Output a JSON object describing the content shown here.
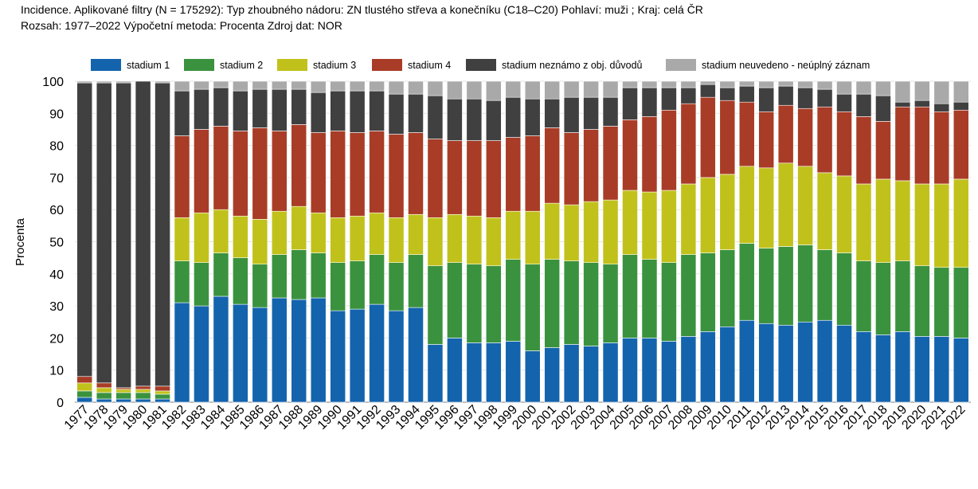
{
  "header": {
    "line1": "Incidence. Aplikované filtry (N = 175292): Typ zhoubného nádoru: ZN tlustého střeva a konečníku (C18–C20) Pohlaví: muži ; Kraj: celá ČR",
    "line2": "Rozsah: 1977–2022 Výpočetní metoda: Procenta Zdroj dat: NOR"
  },
  "chart_data": {
    "type": "bar",
    "stacked": true,
    "ylabel": "Procenta",
    "xlabel": "",
    "ylim": [
      0,
      100
    ],
    "yticks": [
      0,
      10,
      20,
      30,
      40,
      50,
      60,
      70,
      80,
      90,
      100
    ],
    "legend_position": "top",
    "categories": [
      "1977",
      "1978",
      "1979",
      "1980",
      "1981",
      "1982",
      "1983",
      "1984",
      "1985",
      "1986",
      "1987",
      "1988",
      "1989",
      "1990",
      "1991",
      "1992",
      "1993",
      "1994",
      "1995",
      "1996",
      "1997",
      "1998",
      "1999",
      "2000",
      "2001",
      "2002",
      "2003",
      "2004",
      "2005",
      "2006",
      "2007",
      "2008",
      "2009",
      "2010",
      "2011",
      "2012",
      "2013",
      "2014",
      "2015",
      "2016",
      "2017",
      "2018",
      "2019",
      "2020",
      "2021",
      "2022"
    ],
    "series": [
      {
        "name": "stadium 1",
        "color": "#1464ad",
        "values": [
          1.5,
          1,
          1,
          1,
          1,
          31,
          30,
          33,
          30.5,
          29.5,
          32.5,
          32,
          32.5,
          28.5,
          29,
          30.5,
          28.5,
          29.5,
          18,
          20,
          18.5,
          18.5,
          19,
          16,
          17,
          18,
          17.5,
          18.5,
          20,
          20,
          19,
          20.5,
          22,
          23.5,
          25.5,
          24.5,
          24,
          25,
          25.5,
          24,
          22,
          21,
          22,
          20.5,
          20.5,
          20
        ]
      },
      {
        "name": "stadium 2",
        "color": "#3a923e",
        "values": [
          2,
          2,
          2,
          2,
          1.5,
          13,
          13.5,
          13.5,
          14.5,
          13.5,
          13.5,
          15.5,
          14,
          15,
          15,
          15.5,
          15,
          16.5,
          24.5,
          23.5,
          24.5,
          24,
          25.5,
          27,
          27.5,
          26,
          26,
          24.5,
          26,
          24.5,
          24.5,
          25.5,
          24.5,
          24,
          24,
          23.5,
          24.5,
          24,
          22,
          22.5,
          22,
          22.5,
          22,
          22,
          21.5,
          22
        ]
      },
      {
        "name": "stadium 3",
        "color": "#c1c11c",
        "values": [
          2.5,
          1.5,
          1,
          1,
          1,
          13.5,
          15.5,
          13.5,
          13,
          14,
          13.5,
          13.5,
          12.5,
          14,
          14,
          13,
          14,
          12.5,
          15,
          15,
          15,
          15,
          15,
          16.5,
          17.5,
          17.5,
          19,
          20,
          20,
          21,
          22.5,
          22,
          23.5,
          23.5,
          24,
          25,
          26,
          24.5,
          24,
          24,
          24,
          26,
          25,
          25.5,
          26,
          27.5
        ]
      },
      {
        "name": "stadium 4",
        "color": "#a93c26",
        "values": [
          2,
          1.5,
          0.5,
          1,
          1.5,
          25.5,
          26,
          26,
          26.5,
          28.5,
          25,
          25.5,
          25,
          27,
          26,
          25.5,
          26,
          25.5,
          24.5,
          23,
          23.5,
          24,
          23,
          23.5,
          23.5,
          22.5,
          22.5,
          23,
          22,
          23.5,
          25,
          25,
          25,
          23,
          20,
          17.5,
          18,
          18,
          20.5,
          20,
          21,
          18,
          23,
          24,
          22.5,
          21.5
        ]
      },
      {
        "name": "stadium neznámo z obj. důvodů",
        "color": "#404040",
        "values": [
          91.5,
          93.5,
          95,
          95,
          94.5,
          14,
          12.5,
          12,
          12.5,
          12,
          13,
          11,
          12.5,
          12.5,
          13,
          12.5,
          12.5,
          12,
          13.5,
          13,
          13,
          12.5,
          12.5,
          11.5,
          9,
          11,
          10,
          9,
          10,
          9,
          7,
          5,
          4,
          4,
          5,
          7.5,
          6,
          6.5,
          5.5,
          5.5,
          7,
          8,
          1.5,
          2,
          2.5,
          2.5
        ]
      },
      {
        "name": "stadium neuvedeno - neúplný záznam",
        "color": "#a9a9a9",
        "values": [
          0.5,
          0.5,
          0.5,
          0,
          0.5,
          3,
          2.5,
          2,
          3,
          2.5,
          2.5,
          2.5,
          3.5,
          3,
          3,
          3,
          4,
          4,
          4.5,
          5.5,
          5.5,
          6,
          5,
          5.5,
          5.5,
          5,
          5,
          5,
          2,
          2,
          2,
          2,
          1,
          2,
          1.5,
          2,
          1.5,
          2,
          2.5,
          4,
          4,
          4.5,
          6.5,
          6,
          7,
          6.5
        ]
      }
    ]
  }
}
